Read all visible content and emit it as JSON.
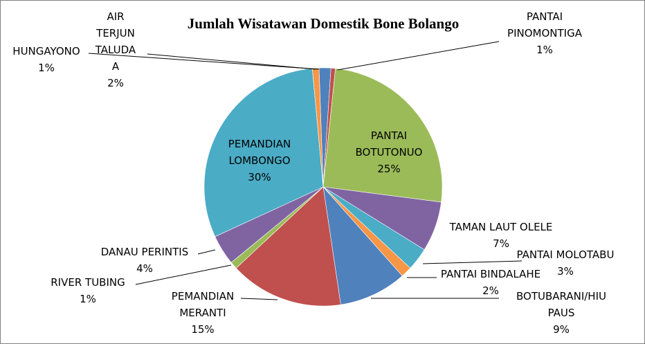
{
  "chart_data": {
    "type": "pie",
    "title": "Jumlah Wisatawan Domestik Bone Bolango",
    "series": [
      {
        "name": "",
        "values": []
      }
    ],
    "slices": [
      {
        "name": "AIR TERJUN TALUDAA",
        "label_lines": [
          "AIR",
          "TERJUN",
          "TALUDA",
          "A"
        ],
        "pct_label": "2%",
        "value": 1.6,
        "color": "#4f81bd"
      },
      {
        "name": "PANTAI PINOMONTIGA",
        "label_lines": [
          "PANTAI",
          "PINOMONTIGA"
        ],
        "pct_label": "1%",
        "value": 0.6,
        "color": "#c0504d"
      },
      {
        "name": "PANTAI BOTUTONUO",
        "label_lines": [
          "PANTAI",
          "BOTUTONUO"
        ],
        "pct_label": "25%",
        "value": 25.4,
        "color": "#9bbb59"
      },
      {
        "name": "TAMAN LAUT OLELE",
        "label_lines": [
          "TAMAN LAUT OLELE"
        ],
        "pct_label": "7%",
        "value": 6.8,
        "color": "#8064a2"
      },
      {
        "name": "PANTAI MOLOTABU",
        "label_lines": [
          "PANTAI MOLOTABU"
        ],
        "pct_label": "3%",
        "value": 3.1,
        "color": "#4bacc6"
      },
      {
        "name": "PANTAI BINDALAHE",
        "label_lines": [
          "PANTAI BINDALAHE"
        ],
        "pct_label": "2%",
        "value": 1.5,
        "color": "#f79646"
      },
      {
        "name": "BOTUBARANI/HIU PAUS",
        "label_lines": [
          "BOTUBARANI/HIU",
          "PAUS"
        ],
        "pct_label": "9%",
        "value": 9.2,
        "color": "#4f81bd"
      },
      {
        "name": "PEMANDIAN MERANTI",
        "label_lines": [
          "PEMANDIAN",
          "MERANTI"
        ],
        "pct_label": "15%",
        "value": 15.4,
        "color": "#c0504d"
      },
      {
        "name": "RIVER TUBING",
        "label_lines": [
          "RIVER TUBING"
        ],
        "pct_label": "1%",
        "value": 1.0,
        "color": "#9bbb59"
      },
      {
        "name": "DANAU PERINTIS",
        "label_lines": [
          "DANAU PERINTIS"
        ],
        "pct_label": "4%",
        "value": 4.1,
        "color": "#8064a2"
      },
      {
        "name": "PEMANDIAN LOMBONGO",
        "label_lines": [
          "PEMANDIAN",
          "LOMBONGO"
        ],
        "pct_label": "30%",
        "value": 30.4,
        "color": "#4bacc6"
      },
      {
        "name": "HUNGAYONO",
        "label_lines": [
          "HUNGAYONO"
        ],
        "pct_label": "1%",
        "value": 0.9,
        "color": "#f79646"
      }
    ]
  }
}
